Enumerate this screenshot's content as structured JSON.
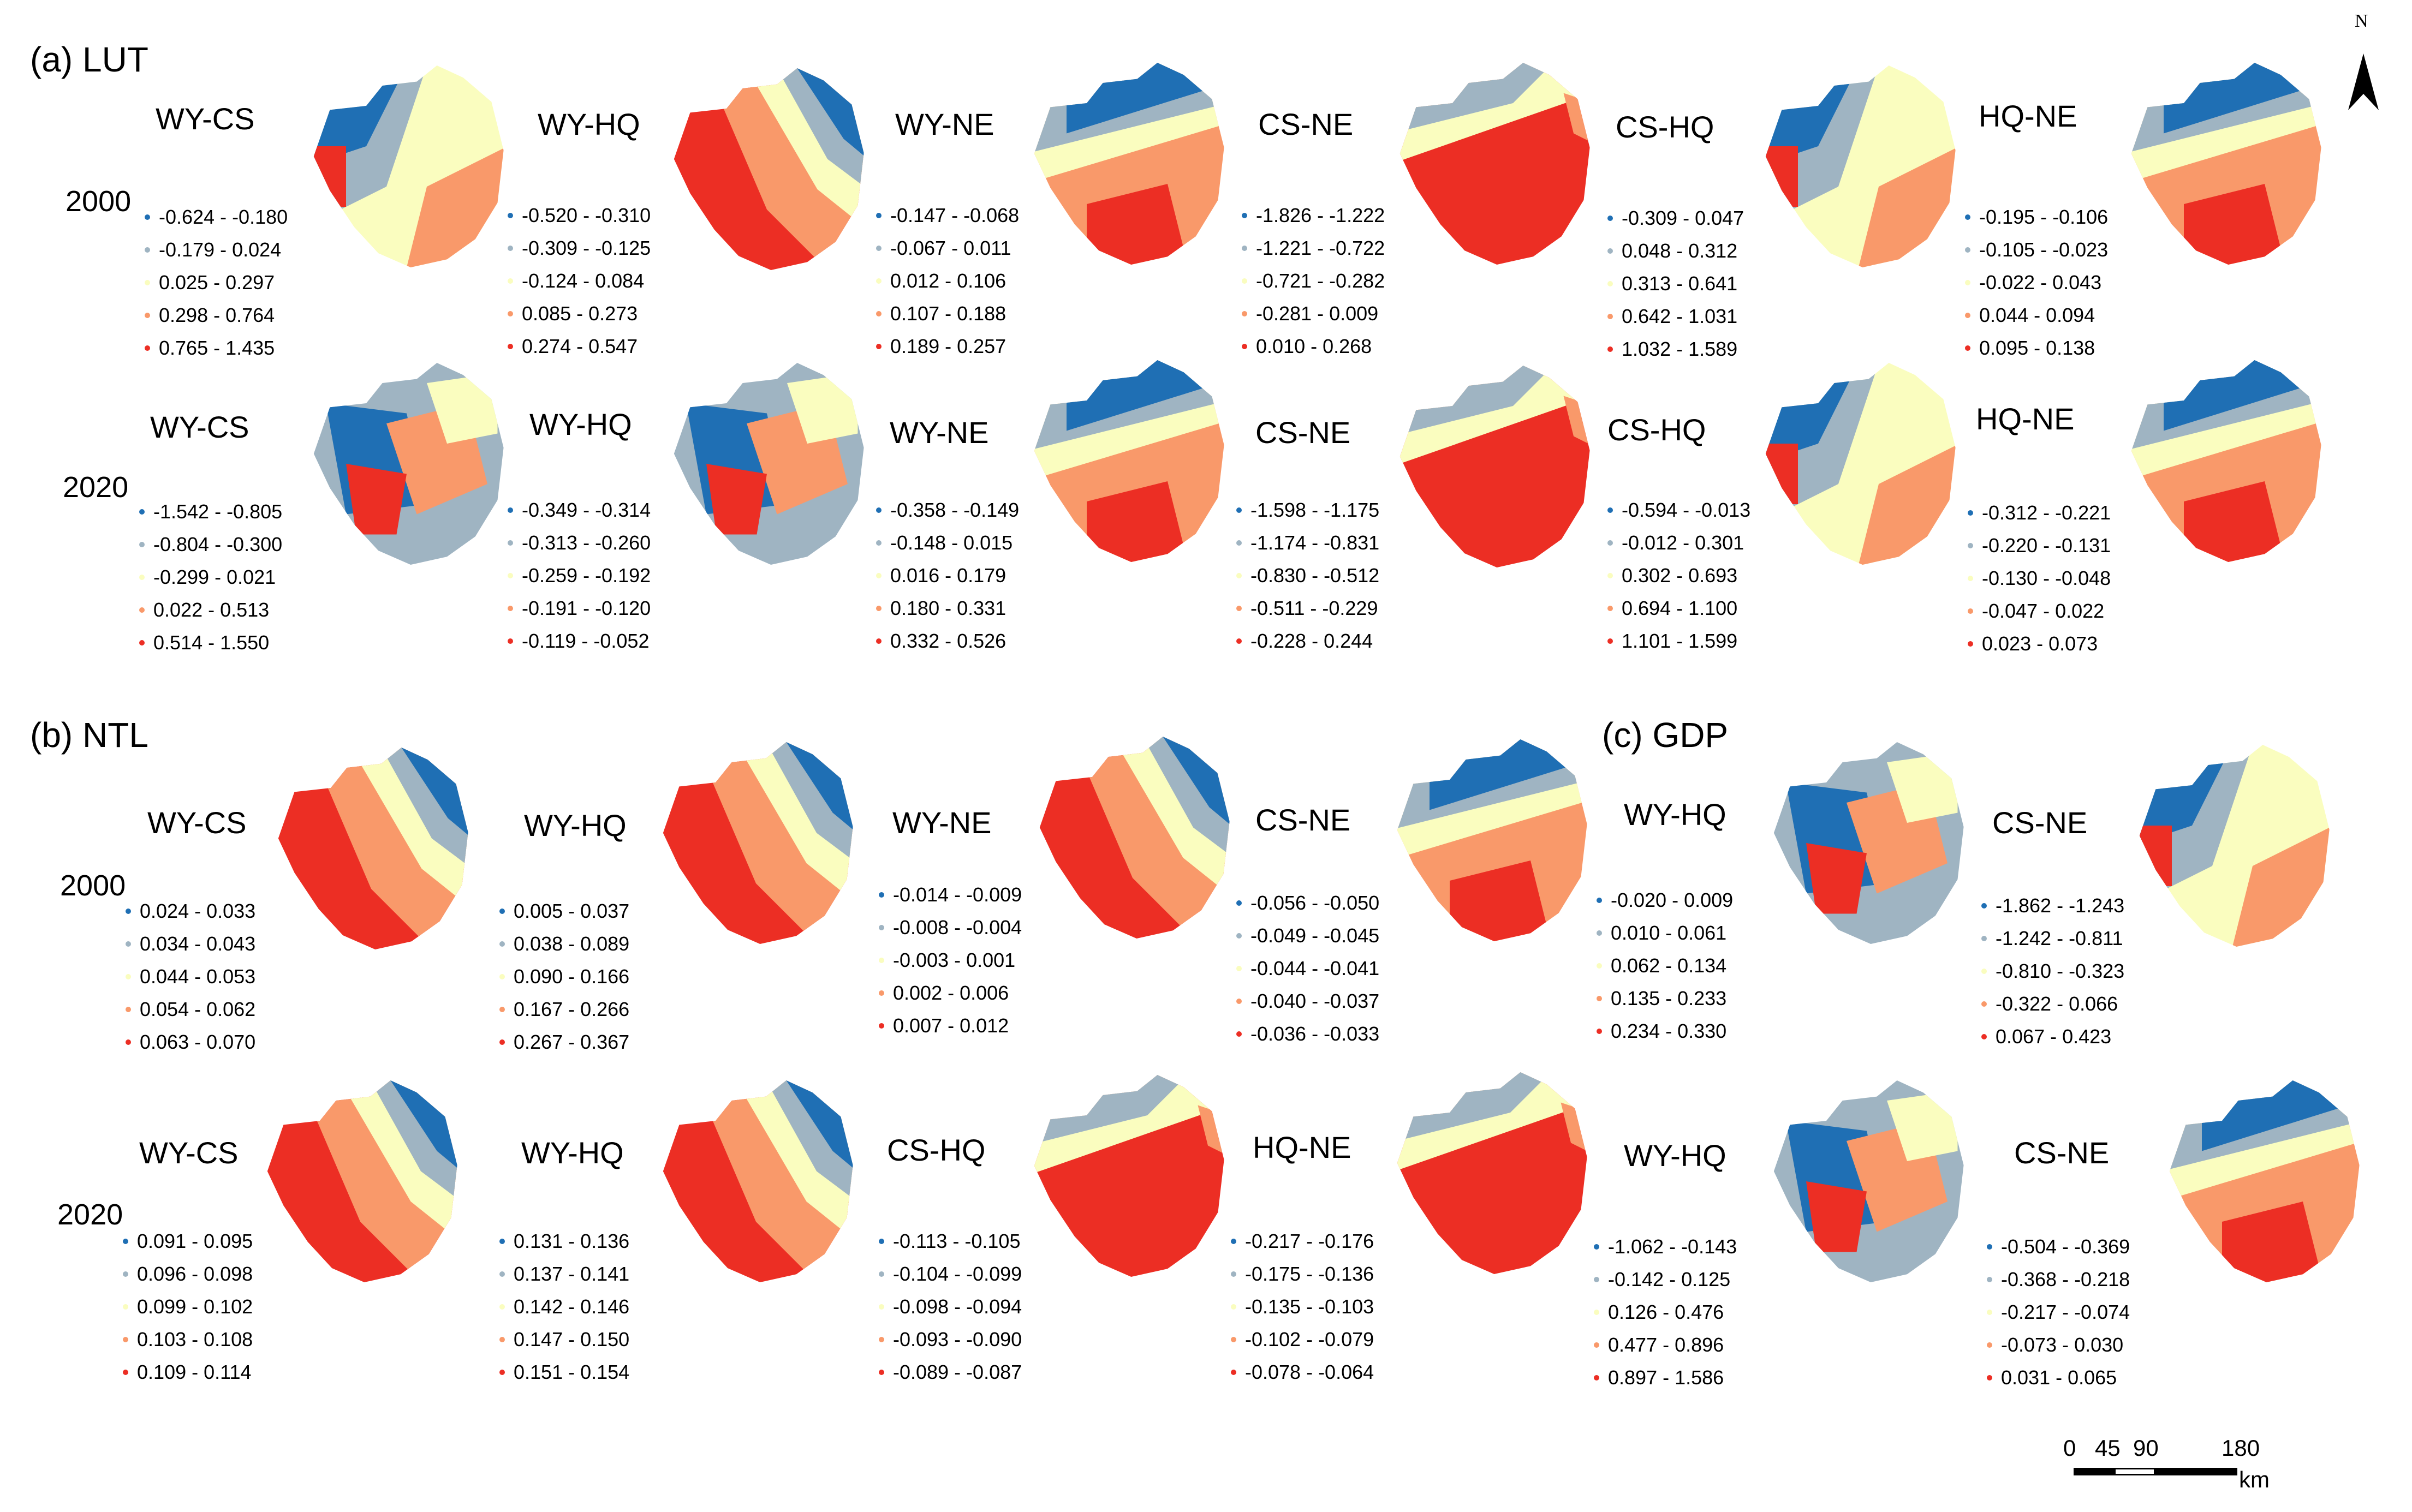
{
  "colors": {
    "c1": "#1f6fb4",
    "c2": "#9fb4c2",
    "c3": "#fafdbf",
    "c4": "#f9996a",
    "c5": "#ec2e24"
  },
  "sections": {
    "a": "(a) LUT",
    "b": "(b) NTL",
    "c": "(c) GDP"
  },
  "years": {
    "y2000": "2000",
    "y2020": "2020"
  },
  "north_label": "N",
  "scale": {
    "t0": "0",
    "t1": "45",
    "t2": "90",
    "t3": "180",
    "unit": "km"
  },
  "maps": [
    {
      "title": "WY-CS",
      "legend": [
        "-0.624 - -0.180",
        "-0.179 - 0.024",
        "0.025 - 0.297",
        "0.298 - 0.764",
        "0.765 - 1.435"
      ]
    },
    {
      "title": "WY-HQ",
      "legend": [
        "-0.520 - -0.310",
        "-0.309 - -0.125",
        "-0.124 - 0.084",
        "0.085 - 0.273",
        "0.274 - 0.547"
      ]
    },
    {
      "title": "WY-NE",
      "legend": [
        "-0.147 - -0.068",
        "-0.067 - 0.011",
        "0.012 - 0.106",
        "0.107 - 0.188",
        "0.189 - 0.257"
      ]
    },
    {
      "title": "CS-NE",
      "legend": [
        "-1.826 - -1.222",
        "-1.221 - -0.722",
        "-0.721 - -0.282",
        "-0.281 - 0.009",
        "0.010 - 0.268"
      ]
    },
    {
      "title": "CS-HQ",
      "legend": [
        "-0.309 - 0.047",
        "0.048 - 0.312",
        "0.313 - 0.641",
        "0.642 - 1.031",
        "1.032 - 1.589"
      ]
    },
    {
      "title": "HQ-NE",
      "legend": [
        "-0.195 - -0.106",
        "-0.105 - -0.023",
        "-0.022 - 0.043",
        "0.044 - 0.094",
        "0.095 - 0.138"
      ]
    },
    {
      "title": "WY-CS",
      "legend": [
        "-1.542 - -0.805",
        "-0.804 - -0.300",
        "-0.299 - 0.021",
        "0.022 - 0.513",
        "0.514 - 1.550"
      ]
    },
    {
      "title": "WY-HQ",
      "legend": [
        "-0.349 - -0.314",
        "-0.313 - -0.260",
        "-0.259 - -0.192",
        "-0.191 - -0.120",
        "-0.119 - -0.052"
      ]
    },
    {
      "title": "WY-NE",
      "legend": [
        "-0.358 - -0.149",
        "-0.148 - 0.015",
        "0.016 - 0.179",
        "0.180 - 0.331",
        "0.332 - 0.526"
      ]
    },
    {
      "title": "CS-NE",
      "legend": [
        "-1.598 - -1.175",
        "-1.174 - -0.831",
        "-0.830 - -0.512",
        "-0.511 - -0.229",
        "-0.228 - 0.244"
      ]
    },
    {
      "title": "CS-HQ",
      "legend": [
        "-0.594 - -0.013",
        "-0.012 - 0.301",
        "0.302 - 0.693",
        "0.694 - 1.100",
        "1.101 - 1.599"
      ]
    },
    {
      "title": "HQ-NE",
      "legend": [
        "-0.312 - -0.221",
        "-0.220 - -0.131",
        "-0.130 - -0.048",
        "-0.047 - 0.022",
        "0.023 - 0.073"
      ]
    },
    {
      "title": "WY-CS",
      "legend": [
        "0.024 - 0.033",
        "0.034 - 0.043",
        "0.044 - 0.053",
        "0.054 - 0.062",
        "0.063 - 0.070"
      ]
    },
    {
      "title": "WY-HQ",
      "legend": [
        "0.005 - 0.037",
        "0.038 - 0.089",
        "0.090 - 0.166",
        "0.167 - 0.266",
        "0.267 - 0.367"
      ]
    },
    {
      "title": "WY-NE",
      "legend": [
        "-0.014 - -0.009",
        "-0.008 - -0.004",
        "-0.003 - 0.001",
        "0.002 - 0.006",
        "0.007 - 0.012"
      ]
    },
    {
      "title": "CS-NE",
      "legend": [
        "-0.056 - -0.050",
        "-0.049 - -0.045",
        "-0.044 - -0.041",
        "-0.040 - -0.037",
        "-0.036 - -0.033"
      ]
    },
    {
      "title": "WY-HQ",
      "legend": [
        "-0.020 - 0.009",
        "0.010 - 0.061",
        "0.062 - 0.134",
        "0.135 - 0.233",
        "0.234 - 0.330"
      ]
    },
    {
      "title": "CS-NE",
      "legend": [
        "-1.862 - -1.243",
        "-1.242 - -0.811",
        "-0.810 - -0.323",
        "-0.322 - 0.066",
        "0.067 - 0.423"
      ]
    },
    {
      "title": "WY-CS",
      "legend": [
        "0.091 - 0.095",
        "0.096 - 0.098",
        "0.099 - 0.102",
        "0.103 - 0.108",
        "0.109 - 0.114"
      ]
    },
    {
      "title": "WY-HQ",
      "legend": [
        "0.131 - 0.136",
        "0.137 - 0.141",
        "0.142 - 0.146",
        "0.147 - 0.150",
        "0.151 - 0.154"
      ]
    },
    {
      "title": "CS-HQ",
      "legend": [
        "-0.113 - -0.105",
        "-0.104 - -0.099",
        "-0.098 - -0.094",
        "-0.093 - -0.090",
        "-0.089 - -0.087"
      ]
    },
    {
      "title": "HQ-NE",
      "legend": [
        "-0.217 - -0.176",
        "-0.175 - -0.136",
        "-0.135 - -0.103",
        "-0.102 - -0.079",
        "-0.078 - -0.064"
      ]
    },
    {
      "title": "WY-HQ",
      "legend": [
        "-1.062 - -0.143",
        "-0.142 - 0.125",
        "0.126 - 0.476",
        "0.477 - 0.896",
        "0.897 - 1.586"
      ]
    },
    {
      "title": "CS-NE",
      "legend": [
        "-0.504 - -0.369",
        "-0.368 - -0.218",
        "-0.217 - -0.074",
        "-0.073 - 0.030",
        "0.031 - 0.065"
      ]
    }
  ]
}
